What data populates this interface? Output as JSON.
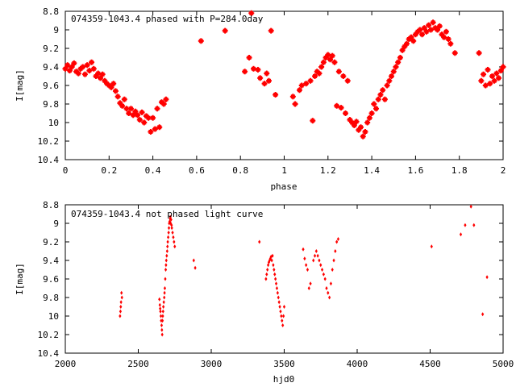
{
  "colors": {
    "points": "#ff0000",
    "axes": "#000000",
    "background": "#ffffff"
  },
  "chart_data": [
    {
      "type": "scatter",
      "title": "074359-1043.4 phased with P=284.0day",
      "xlabel": "phase",
      "ylabel": "I[mag]",
      "xlim": [
        0,
        2
      ],
      "ylim": [
        10.4,
        8.8
      ],
      "y_inverted": true,
      "grid": false,
      "legend": "none",
      "x_ticks": [
        "0",
        "0.2",
        "0.4",
        "0.6",
        "0.8",
        "1",
        "1.2",
        "1.4",
        "1.6",
        "1.8",
        "2"
      ],
      "y_ticks": [
        "8.8",
        "9",
        "9.2",
        "9.4",
        "9.6",
        "9.8",
        "10",
        "10.2",
        "10.4"
      ],
      "x_tick_values": [
        0,
        0.2,
        0.4,
        0.6,
        0.8,
        1.0,
        1.2,
        1.4,
        1.6,
        1.8,
        2.0
      ],
      "y_tick_values": [
        8.8,
        9.0,
        9.2,
        9.4,
        9.6,
        9.8,
        10.0,
        10.2,
        10.4
      ],
      "points": [
        [
          0.0,
          9.42
        ],
        [
          0.01,
          9.38
        ],
        [
          0.02,
          9.44
        ],
        [
          0.03,
          9.4
        ],
        [
          0.04,
          9.36
        ],
        [
          0.05,
          9.45
        ],
        [
          0.06,
          9.47
        ],
        [
          0.07,
          9.42
        ],
        [
          0.08,
          9.4
        ],
        [
          0.09,
          9.48
        ],
        [
          0.1,
          9.38
        ],
        [
          0.11,
          9.44
        ],
        [
          0.12,
          9.35
        ],
        [
          0.13,
          9.42
        ],
        [
          0.14,
          9.5
        ],
        [
          0.15,
          9.47
        ],
        [
          0.16,
          9.52
        ],
        [
          0.17,
          9.48
        ],
        [
          0.18,
          9.55
        ],
        [
          0.19,
          9.58
        ],
        [
          0.2,
          9.6
        ],
        [
          0.21,
          9.62
        ],
        [
          0.22,
          9.58
        ],
        [
          0.23,
          9.66
        ],
        [
          0.24,
          9.72
        ],
        [
          0.25,
          9.79
        ],
        [
          0.26,
          9.82
        ],
        [
          0.27,
          9.75
        ],
        [
          0.28,
          9.85
        ],
        [
          0.29,
          9.9
        ],
        [
          0.3,
          9.85
        ],
        [
          0.31,
          9.92
        ],
        [
          0.32,
          9.88
        ],
        [
          0.33,
          9.92
        ],
        [
          0.34,
          9.97
        ],
        [
          0.35,
          9.89
        ],
        [
          0.36,
          10.0
        ],
        [
          0.37,
          9.93
        ],
        [
          0.38,
          9.95
        ],
        [
          0.39,
          10.1
        ],
        [
          0.4,
          9.95
        ],
        [
          0.41,
          10.07
        ],
        [
          0.42,
          9.85
        ],
        [
          0.43,
          10.05
        ],
        [
          0.44,
          9.78
        ],
        [
          0.45,
          9.8
        ],
        [
          0.46,
          9.75
        ],
        [
          0.62,
          9.12
        ],
        [
          0.73,
          9.01
        ],
        [
          0.82,
          9.45
        ],
        [
          0.84,
          9.3
        ],
        [
          0.85,
          8.82
        ],
        [
          0.86,
          9.42
        ],
        [
          0.88,
          9.43
        ],
        [
          0.89,
          9.52
        ],
        [
          0.91,
          9.58
        ],
        [
          0.92,
          9.47
        ],
        [
          0.93,
          9.55
        ],
        [
          0.94,
          9.01
        ],
        [
          0.96,
          9.7
        ],
        [
          1.04,
          9.72
        ],
        [
          1.05,
          9.8
        ],
        [
          1.07,
          9.65
        ],
        [
          1.08,
          9.6
        ],
        [
          1.1,
          9.58
        ],
        [
          1.12,
          9.55
        ],
        [
          1.13,
          9.98
        ],
        [
          1.14,
          9.5
        ],
        [
          1.15,
          9.45
        ],
        [
          1.16,
          9.47
        ],
        [
          1.17,
          9.4
        ],
        [
          1.18,
          9.35
        ],
        [
          1.19,
          9.3
        ],
        [
          1.2,
          9.27
        ],
        [
          1.21,
          9.32
        ],
        [
          1.22,
          9.28
        ],
        [
          1.23,
          9.35
        ],
        [
          1.24,
          9.82
        ],
        [
          1.25,
          9.45
        ],
        [
          1.26,
          9.84
        ],
        [
          1.27,
          9.5
        ],
        [
          1.28,
          9.9
        ],
        [
          1.29,
          9.55
        ],
        [
          1.3,
          9.97
        ],
        [
          1.31,
          10.0
        ],
        [
          1.32,
          10.03
        ],
        [
          1.33,
          9.99
        ],
        [
          1.34,
          10.08
        ],
        [
          1.35,
          10.05
        ],
        [
          1.36,
          10.15
        ],
        [
          1.37,
          10.1
        ],
        [
          1.38,
          10.0
        ],
        [
          1.39,
          9.95
        ],
        [
          1.4,
          9.9
        ],
        [
          1.41,
          9.8
        ],
        [
          1.42,
          9.85
        ],
        [
          1.43,
          9.75
        ],
        [
          1.44,
          9.7
        ],
        [
          1.45,
          9.65
        ],
        [
          1.46,
          9.75
        ],
        [
          1.47,
          9.6
        ],
        [
          1.48,
          9.55
        ],
        [
          1.49,
          9.5
        ],
        [
          1.5,
          9.45
        ],
        [
          1.51,
          9.4
        ],
        [
          1.52,
          9.35
        ],
        [
          1.53,
          9.3
        ],
        [
          1.54,
          9.22
        ],
        [
          1.55,
          9.18
        ],
        [
          1.56,
          9.15
        ],
        [
          1.57,
          9.1
        ],
        [
          1.58,
          9.08
        ],
        [
          1.59,
          9.12
        ],
        [
          1.6,
          9.05
        ],
        [
          1.61,
          9.02
        ],
        [
          1.62,
          9.0
        ],
        [
          1.63,
          9.05
        ],
        [
          1.64,
          8.98
        ],
        [
          1.65,
          9.02
        ],
        [
          1.66,
          8.95
        ],
        [
          1.67,
          9.0
        ],
        [
          1.68,
          8.92
        ],
        [
          1.69,
          8.98
        ],
        [
          1.7,
          9.0
        ],
        [
          1.71,
          8.96
        ],
        [
          1.72,
          9.05
        ],
        [
          1.73,
          9.08
        ],
        [
          1.74,
          9.02
        ],
        [
          1.75,
          9.1
        ],
        [
          1.76,
          9.15
        ],
        [
          1.78,
          9.25
        ],
        [
          1.89,
          9.25
        ],
        [
          1.9,
          9.55
        ],
        [
          1.91,
          9.48
        ],
        [
          1.92,
          9.6
        ],
        [
          1.93,
          9.43
        ],
        [
          1.94,
          9.58
        ],
        [
          1.95,
          9.5
        ],
        [
          1.96,
          9.55
        ],
        [
          1.97,
          9.47
        ],
        [
          1.98,
          9.52
        ],
        [
          1.99,
          9.44
        ],
        [
          2.0,
          9.4
        ]
      ]
    },
    {
      "type": "scatter",
      "title": "074359-1043.4 not phased light curve",
      "xlabel": "hjd0",
      "ylabel": "I[mag]",
      "xlim": [
        2000,
        5000
      ],
      "ylim": [
        10.4,
        8.8
      ],
      "y_inverted": true,
      "grid": false,
      "legend": "none",
      "x_ticks": [
        "2000",
        "2500",
        "3000",
        "3500",
        "4000",
        "4500",
        "5000"
      ],
      "y_ticks": [
        "8.8",
        "9",
        "9.2",
        "9.4",
        "9.6",
        "9.8",
        "10",
        "10.2",
        "10.4"
      ],
      "x_tick_values": [
        2000,
        2500,
        3000,
        3500,
        4000,
        4500,
        5000
      ],
      "y_tick_values": [
        8.8,
        9.0,
        9.2,
        9.4,
        9.6,
        9.8,
        10.0,
        10.2,
        10.4
      ],
      "points": [
        [
          2375,
          10.0
        ],
        [
          2378,
          9.95
        ],
        [
          2380,
          9.9
        ],
        [
          2382,
          9.85
        ],
        [
          2385,
          9.75
        ],
        [
          2388,
          9.8
        ],
        [
          2645,
          9.82
        ],
        [
          2648,
          9.88
        ],
        [
          2650,
          9.92
        ],
        [
          2652,
          9.95
        ],
        [
          2655,
          10.0
        ],
        [
          2657,
          10.05
        ],
        [
          2660,
          10.1
        ],
        [
          2662,
          10.15
        ],
        [
          2664,
          10.2
        ],
        [
          2666,
          10.05
        ],
        [
          2668,
          10.0
        ],
        [
          2670,
          9.95
        ],
        [
          2672,
          9.9
        ],
        [
          2675,
          9.85
        ],
        [
          2678,
          9.8
        ],
        [
          2680,
          9.75
        ],
        [
          2682,
          9.7
        ],
        [
          2685,
          9.6
        ],
        [
          2688,
          9.5
        ],
        [
          2690,
          9.45
        ],
        [
          2692,
          9.4
        ],
        [
          2695,
          9.35
        ],
        [
          2698,
          9.3
        ],
        [
          2700,
          9.25
        ],
        [
          2702,
          9.2
        ],
        [
          2705,
          9.15
        ],
        [
          2708,
          9.1
        ],
        [
          2710,
          9.05
        ],
        [
          2712,
          9.0
        ],
        [
          2715,
          8.98
        ],
        [
          2718,
          8.95
        ],
        [
          2720,
          8.93
        ],
        [
          2722,
          9.0
        ],
        [
          2725,
          8.96
        ],
        [
          2728,
          9.02
        ],
        [
          2730,
          9.05
        ],
        [
          2735,
          9.1
        ],
        [
          2740,
          9.15
        ],
        [
          2745,
          9.2
        ],
        [
          2750,
          9.25
        ],
        [
          2880,
          9.4
        ],
        [
          2890,
          9.48
        ],
        [
          3330,
          9.2
        ],
        [
          3375,
          9.6
        ],
        [
          3380,
          9.55
        ],
        [
          3385,
          9.5
        ],
        [
          3390,
          9.45
        ],
        [
          3395,
          9.42
        ],
        [
          3400,
          9.4
        ],
        [
          3405,
          9.38
        ],
        [
          3410,
          9.36
        ],
        [
          3415,
          9.4
        ],
        [
          3420,
          9.35
        ],
        [
          3425,
          9.45
        ],
        [
          3430,
          9.5
        ],
        [
          3435,
          9.55
        ],
        [
          3440,
          9.6
        ],
        [
          3445,
          9.65
        ],
        [
          3450,
          9.7
        ],
        [
          3455,
          9.75
        ],
        [
          3460,
          9.8
        ],
        [
          3465,
          9.85
        ],
        [
          3470,
          9.9
        ],
        [
          3475,
          9.95
        ],
        [
          3480,
          10.0
        ],
        [
          3485,
          10.05
        ],
        [
          3490,
          10.1
        ],
        [
          3495,
          10.0
        ],
        [
          3500,
          9.9
        ],
        [
          3630,
          9.28
        ],
        [
          3640,
          9.38
        ],
        [
          3650,
          9.45
        ],
        [
          3660,
          9.5
        ],
        [
          3670,
          9.7
        ],
        [
          3680,
          9.65
        ],
        [
          3700,
          9.4
        ],
        [
          3710,
          9.35
        ],
        [
          3720,
          9.3
        ],
        [
          3730,
          9.35
        ],
        [
          3740,
          9.4
        ],
        [
          3750,
          9.45
        ],
        [
          3760,
          9.5
        ],
        [
          3770,
          9.55
        ],
        [
          3780,
          9.6
        ],
        [
          3790,
          9.7
        ],
        [
          3800,
          9.75
        ],
        [
          3810,
          9.8
        ],
        [
          3820,
          9.65
        ],
        [
          3830,
          9.5
        ],
        [
          3840,
          9.4
        ],
        [
          3850,
          9.3
        ],
        [
          3860,
          9.2
        ],
        [
          3870,
          9.17
        ],
        [
          4510,
          9.25
        ],
        [
          4710,
          9.12
        ],
        [
          4740,
          9.02
        ],
        [
          4780,
          8.82
        ],
        [
          4800,
          9.02
        ],
        [
          4860,
          9.98
        ],
        [
          4890,
          9.58
        ]
      ]
    }
  ]
}
